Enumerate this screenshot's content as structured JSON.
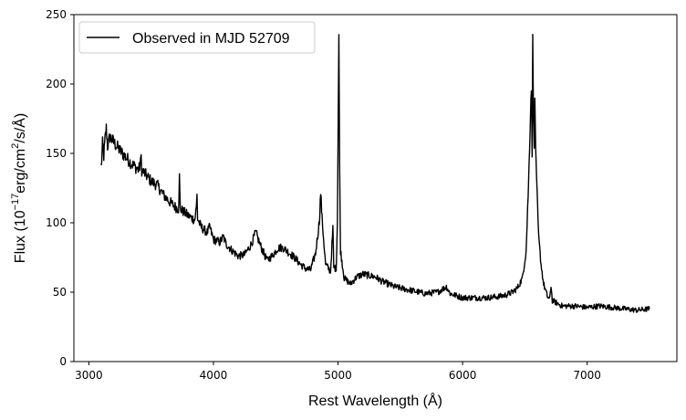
{
  "chart_data": {
    "type": "line",
    "xlabel": "Rest Wavelength (Å)",
    "ylabel_main": "Flux (10",
    "ylabel_exp1": "−17",
    "ylabel_mid": "erg/cm",
    "ylabel_exp2": "2",
    "ylabel_end": "/s/Å)",
    "xlim": [
      2880,
      7720
    ],
    "ylim": [
      0,
      250
    ],
    "xticks": [
      3000,
      4000,
      5000,
      6000,
      7000
    ],
    "yticks": [
      0,
      50,
      100,
      150,
      200,
      250
    ],
    "legend_position": "upper-left",
    "grid": false,
    "series": [
      {
        "name": "Observed in MJD 52709",
        "color": "#000000",
        "noise": 2.5,
        "points": [
          [
            3100,
            140
          ],
          [
            3110,
            157
          ],
          [
            3120,
            148
          ],
          [
            3130,
            160
          ],
          [
            3140,
            168
          ],
          [
            3150,
            155
          ],
          [
            3170,
            162
          ],
          [
            3200,
            158
          ],
          [
            3250,
            152
          ],
          [
            3300,
            147
          ],
          [
            3350,
            142
          ],
          [
            3400,
            138
          ],
          [
            3415,
            143
          ],
          [
            3420,
            148
          ],
          [
            3425,
            138
          ],
          [
            3500,
            130
          ],
          [
            3550,
            127
          ],
          [
            3600,
            120
          ],
          [
            3650,
            115
          ],
          [
            3700,
            111
          ],
          [
            3720,
            110
          ],
          [
            3727,
            133
          ],
          [
            3734,
            110
          ],
          [
            3800,
            105
          ],
          [
            3850,
            102
          ],
          [
            3863,
            111
          ],
          [
            3868,
            120
          ],
          [
            3873,
            103
          ],
          [
            3900,
            97
          ],
          [
            3950,
            93
          ],
          [
            3970,
            97
          ],
          [
            4000,
            88
          ],
          [
            4050,
            86
          ],
          [
            4080,
            90
          ],
          [
            4100,
            85
          ],
          [
            4150,
            80
          ],
          [
            4200,
            76
          ],
          [
            4250,
            77
          ],
          [
            4300,
            84
          ],
          [
            4340,
            93
          ],
          [
            4380,
            83
          ],
          [
            4430,
            73
          ],
          [
            4470,
            76
          ],
          [
            4520,
            82
          ],
          [
            4560,
            82
          ],
          [
            4600,
            79
          ],
          [
            4650,
            75
          ],
          [
            4700,
            70
          ],
          [
            4740,
            67
          ],
          [
            4780,
            66
          ],
          [
            4820,
            78
          ],
          [
            4850,
            101
          ],
          [
            4861,
            122
          ],
          [
            4872,
            103
          ],
          [
            4900,
            70
          ],
          [
            4940,
            65
          ],
          [
            4959,
            96
          ],
          [
            4966,
            68
          ],
          [
            4985,
            67
          ],
          [
            4995,
            100
          ],
          [
            5000,
            160
          ],
          [
            5007,
            236
          ],
          [
            5013,
            140
          ],
          [
            5020,
            80
          ],
          [
            5050,
            60
          ],
          [
            5100,
            56
          ],
          [
            5150,
            61
          ],
          [
            5200,
            63
          ],
          [
            5250,
            62
          ],
          [
            5300,
            61
          ],
          [
            5350,
            58
          ],
          [
            5400,
            56
          ],
          [
            5450,
            54
          ],
          [
            5500,
            53
          ],
          [
            5600,
            51
          ],
          [
            5700,
            49
          ],
          [
            5800,
            50
          ],
          [
            5870,
            54
          ],
          [
            5900,
            49
          ],
          [
            6000,
            46
          ],
          [
            6100,
            46
          ],
          [
            6200,
            46
          ],
          [
            6300,
            47
          ],
          [
            6350,
            48
          ],
          [
            6400,
            50
          ],
          [
            6440,
            53
          ],
          [
            6480,
            60
          ],
          [
            6510,
            80
          ],
          [
            6530,
            130
          ],
          [
            6545,
            180
          ],
          [
            6552,
            200
          ],
          [
            6558,
            150
          ],
          [
            6563,
            231
          ],
          [
            6570,
            180
          ],
          [
            6575,
            150
          ],
          [
            6580,
            188
          ],
          [
            6590,
            140
          ],
          [
            6610,
            90
          ],
          [
            6630,
            70
          ],
          [
            6650,
            56
          ],
          [
            6680,
            47
          ],
          [
            6700,
            45
          ],
          [
            6710,
            55
          ],
          [
            6720,
            44
          ],
          [
            6800,
            40
          ],
          [
            6900,
            40
          ],
          [
            7000,
            39
          ],
          [
            7100,
            40
          ],
          [
            7200,
            39
          ],
          [
            7300,
            38
          ],
          [
            7400,
            37
          ],
          [
            7500,
            38
          ]
        ]
      }
    ]
  }
}
